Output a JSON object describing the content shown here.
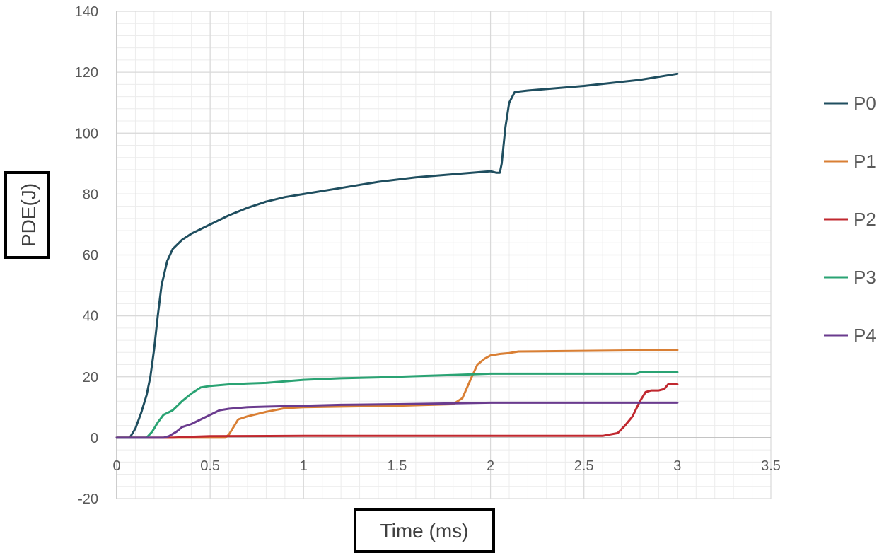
{
  "chart_data": {
    "type": "line",
    "xlabel": "Time (ms)",
    "ylabel": "PDE(J)",
    "xlim": [
      0,
      3.5
    ],
    "ylim": [
      -20,
      140
    ],
    "x_ticks": [
      0,
      0.5,
      1,
      1.5,
      2,
      2.5,
      3,
      3.5
    ],
    "x_tick_labels": [
      "0",
      "0.5",
      "1",
      "1.5",
      "2",
      "2.5",
      "3",
      "3.5"
    ],
    "y_ticks": [
      -20,
      0,
      20,
      40,
      60,
      80,
      100,
      120,
      140
    ],
    "y_tick_labels": [
      "-20",
      "0",
      "20",
      "40",
      "60",
      "80",
      "100",
      "120",
      "140"
    ],
    "grid": true,
    "legend_position": "right",
    "series": [
      {
        "name": "P0",
        "color": "#1f4e5f",
        "x": [
          0,
          0.07,
          0.1,
          0.13,
          0.16,
          0.18,
          0.2,
          0.22,
          0.24,
          0.27,
          0.3,
          0.35,
          0.4,
          0.5,
          0.6,
          0.7,
          0.8,
          0.9,
          1.0,
          1.2,
          1.4,
          1.6,
          1.8,
          2.0,
          2.03,
          2.05,
          2.06,
          2.08,
          2.1,
          2.13,
          2.2,
          2.5,
          2.8,
          3.0
        ],
        "y": [
          0,
          0,
          3,
          8,
          14,
          20,
          29,
          40,
          50,
          58,
          62,
          65,
          67,
          70,
          73,
          75.5,
          77.5,
          79,
          80,
          82,
          84,
          85.5,
          86.5,
          87.5,
          87,
          87,
          90,
          102,
          110,
          113.5,
          114,
          115.5,
          117.5,
          119.5
        ]
      },
      {
        "name": "P1",
        "color": "#d97f34",
        "x": [
          0,
          0.58,
          0.6,
          0.65,
          0.7,
          0.8,
          0.9,
          1.0,
          1.5,
          1.8,
          1.85,
          1.9,
          1.93,
          1.97,
          2.0,
          2.05,
          2.1,
          2.15,
          2.3,
          3.0
        ],
        "y": [
          0,
          0,
          1,
          6,
          7,
          8.5,
          9.7,
          10,
          10.5,
          11,
          13,
          20,
          24,
          26,
          27,
          27.5,
          27.8,
          28.3,
          28.4,
          28.8
        ]
      },
      {
        "name": "P2",
        "color": "#c0282f",
        "x": [
          0,
          0.3,
          0.4,
          0.5,
          1.0,
          2.0,
          2.6,
          2.68,
          2.72,
          2.76,
          2.8,
          2.83,
          2.86,
          2.9,
          2.93,
          2.95,
          2.97,
          3.0
        ],
        "y": [
          0,
          0,
          0.3,
          0.5,
          0.6,
          0.6,
          0.6,
          1.5,
          4,
          7,
          12,
          15,
          15.5,
          15.5,
          16,
          17.5,
          17.5,
          17.5
        ]
      },
      {
        "name": "P3",
        "color": "#2aa373",
        "x": [
          0,
          0.16,
          0.19,
          0.22,
          0.25,
          0.3,
          0.35,
          0.4,
          0.45,
          0.5,
          0.6,
          0.7,
          0.8,
          0.9,
          1.0,
          1.2,
          1.4,
          1.6,
          1.8,
          2.0,
          2.4,
          2.78,
          2.8,
          3.0
        ],
        "y": [
          0,
          0,
          2,
          5,
          7.5,
          9,
          12,
          14.5,
          16.5,
          17,
          17.5,
          17.8,
          18,
          18.5,
          19,
          19.5,
          19.8,
          20.2,
          20.6,
          21,
          21,
          21,
          21.5,
          21.5
        ]
      },
      {
        "name": "P4",
        "color": "#6a3b8e",
        "x": [
          0,
          0.25,
          0.28,
          0.32,
          0.35,
          0.4,
          0.45,
          0.5,
          0.55,
          0.6,
          0.7,
          0.8,
          1.0,
          1.2,
          1.5,
          2.0,
          2.5,
          3.0
        ],
        "y": [
          0,
          0,
          0.5,
          2,
          3.5,
          4.5,
          6,
          7.5,
          9,
          9.5,
          10,
          10.2,
          10.5,
          10.8,
          11,
          11.5,
          11.5,
          11.5
        ]
      }
    ]
  }
}
